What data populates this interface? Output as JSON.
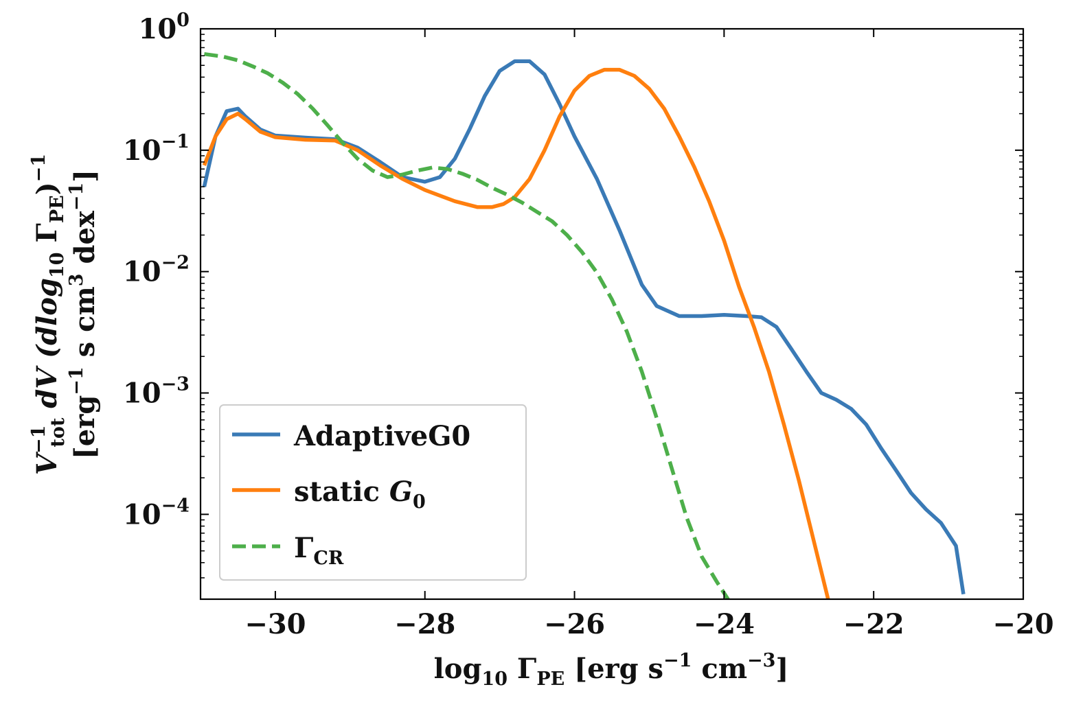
{
  "chart_data": {
    "type": "line",
    "title": "",
    "xlabel": {
      "prefix": "log",
      "sub1": "10",
      "mid": " Γ",
      "sub2": "PE",
      "suffix1": " [erg s",
      "sup1": "−1",
      "suffix2": " cm",
      "sup2": "−3",
      "suffix3": "]"
    },
    "ylabel": {
      "line1": {
        "a": "V",
        "sup": "−1",
        "sub": "tot",
        "b": " dV  (dlog",
        "sub2": "10",
        "c": " Γ",
        "sub3": "PE",
        "d": ")",
        "sup2": "−1"
      },
      "line2": {
        "a": "[erg",
        "sup1": "−1",
        "b": " s cm",
        "sup2": "3",
        "c": " dex",
        "sup3": "−1",
        "d": "]"
      }
    },
    "xlim": [
      -31,
      -20
    ],
    "ylim": [
      2e-05,
      1
    ],
    "yscale": "log",
    "xticks": [
      -30,
      -28,
      -26,
      -24,
      -22,
      -20
    ],
    "xtick_labels": [
      "−30",
      "−28",
      "−26",
      "−24",
      "−22",
      "−20"
    ],
    "yticks": [
      {
        "value": 1,
        "base": "10",
        "exp": "0"
      },
      {
        "value": 0.1,
        "base": "10",
        "exp": "−1"
      },
      {
        "value": 0.01,
        "base": "10",
        "exp": "−2"
      },
      {
        "value": 0.001,
        "base": "10",
        "exp": "−3"
      },
      {
        "value": 0.0001,
        "base": "10",
        "exp": "−4"
      }
    ],
    "legend_position": "lower-left",
    "series": [
      {
        "name": "AdaptiveG0",
        "legend": {
          "text": "AdaptiveG0"
        },
        "color": "#3a7ab6",
        "dash": "solid",
        "x": [
          -30.95,
          -30.8,
          -30.65,
          -30.5,
          -30.4,
          -30.2,
          -30.0,
          -29.6,
          -29.2,
          -28.9,
          -28.6,
          -28.3,
          -28.0,
          -27.8,
          -27.6,
          -27.4,
          -27.2,
          -27.0,
          -26.8,
          -26.6,
          -26.4,
          -26.2,
          -26.0,
          -25.7,
          -25.4,
          -25.1,
          -24.9,
          -24.6,
          -24.3,
          -24.0,
          -23.7,
          -23.5,
          -23.3,
          -23.1,
          -22.9,
          -22.7,
          -22.5,
          -22.3,
          -22.1,
          -21.9,
          -21.7,
          -21.5,
          -21.3,
          -21.1,
          -20.9,
          -20.8
        ],
        "y": [
          0.05,
          0.13,
          0.21,
          0.22,
          0.19,
          0.148,
          0.132,
          0.127,
          0.123,
          0.105,
          0.08,
          0.06,
          0.055,
          0.06,
          0.085,
          0.15,
          0.28,
          0.45,
          0.54,
          0.54,
          0.42,
          0.24,
          0.13,
          0.058,
          0.022,
          0.0078,
          0.0052,
          0.0043,
          0.0043,
          0.0044,
          0.0043,
          0.0042,
          0.0035,
          0.0023,
          0.0015,
          0.001,
          0.00088,
          0.00074,
          0.00055,
          0.00035,
          0.00023,
          0.00015,
          0.00011,
          8.5e-05,
          5.5e-05,
          2.2e-05
        ]
      },
      {
        "name": "static G0",
        "legend": {
          "text": "static ",
          "italic": "G",
          "sub": "0"
        },
        "color": "#ff7f0e",
        "dash": "solid",
        "x": [
          -30.95,
          -30.8,
          -30.65,
          -30.5,
          -30.4,
          -30.2,
          -30.0,
          -29.6,
          -29.2,
          -28.9,
          -28.6,
          -28.3,
          -28.0,
          -27.6,
          -27.3,
          -27.1,
          -26.95,
          -26.8,
          -26.6,
          -26.4,
          -26.2,
          -26.0,
          -25.8,
          -25.6,
          -25.4,
          -25.2,
          -25.0,
          -24.8,
          -24.6,
          -24.4,
          -24.2,
          -24.0,
          -23.8,
          -23.6,
          -23.4,
          -23.2,
          -23.0,
          -22.8,
          -22.6
        ],
        "y": [
          0.075,
          0.13,
          0.18,
          0.2,
          0.18,
          0.142,
          0.128,
          0.122,
          0.12,
          0.1,
          0.075,
          0.058,
          0.047,
          0.038,
          0.034,
          0.034,
          0.036,
          0.041,
          0.058,
          0.1,
          0.19,
          0.31,
          0.41,
          0.46,
          0.46,
          0.41,
          0.32,
          0.22,
          0.13,
          0.073,
          0.038,
          0.018,
          0.0075,
          0.0035,
          0.0015,
          0.00055,
          0.00019,
          6e-05,
          1.9e-05
        ]
      },
      {
        "name": "ΓCR",
        "legend": {
          "text": "Γ",
          "sub": "CR"
        },
        "color": "#4daf4a",
        "dash": "dashed",
        "x": [
          -30.95,
          -30.7,
          -30.5,
          -30.3,
          -30.1,
          -29.9,
          -29.7,
          -29.5,
          -29.3,
          -29.1,
          -28.9,
          -28.7,
          -28.5,
          -28.3,
          -28.1,
          -27.9,
          -27.7,
          -27.5,
          -27.3,
          -27.1,
          -26.9,
          -26.7,
          -26.5,
          -26.3,
          -26.1,
          -25.9,
          -25.7,
          -25.5,
          -25.3,
          -25.1,
          -24.9,
          -24.7,
          -24.5,
          -24.3,
          -24.1,
          -23.9
        ],
        "y": [
          0.62,
          0.59,
          0.55,
          0.49,
          0.43,
          0.36,
          0.29,
          0.22,
          0.16,
          0.115,
          0.085,
          0.068,
          0.06,
          0.063,
          0.068,
          0.072,
          0.07,
          0.064,
          0.057,
          0.049,
          0.043,
          0.037,
          0.031,
          0.026,
          0.02,
          0.0145,
          0.0098,
          0.0059,
          0.0032,
          0.0015,
          0.00062,
          0.00024,
          9.4e-05,
          4.5e-05,
          2.8e-05,
          1.8e-05
        ]
      }
    ]
  }
}
